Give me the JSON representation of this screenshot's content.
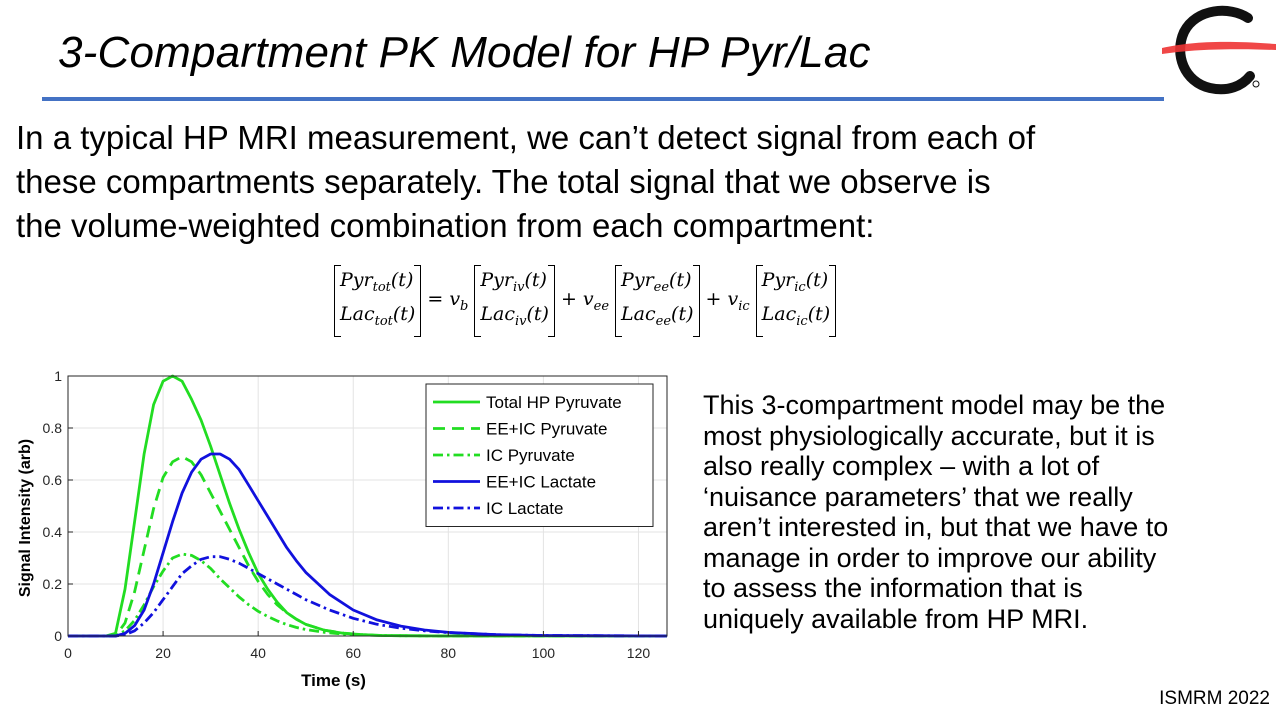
{
  "title": "3-Compartment PK Model for HP Pyr/Lac",
  "intro_lines": [
    "In a typical HP MRI measurement, we can’t detect signal from each of",
    "these compartments separately.  The total signal that we observe is",
    "the volume-weighted combination from each compartment:"
  ],
  "equation": {
    "lhs": [
      "Pyr",
      "tot",
      "Lac",
      "tot"
    ],
    "terms": [
      {
        "coef": "v",
        "coef_sub": "b",
        "sub": "iv"
      },
      {
        "coef": "v",
        "coef_sub": "ee",
        "sub": "ee"
      },
      {
        "coef": "v",
        "coef_sub": "ic",
        "sub": "ic"
      }
    ],
    "arg": "(t)",
    "equals": "=",
    "plus": "+"
  },
  "side_text_lines": [
    "This 3-compartment model may be the",
    "most physiologically accurate, but it is",
    "also really complex – with a lot of",
    "‘nuisance parameters’ that we really",
    "aren’t interested in, but that we have to",
    "manage in order to improve our ability",
    "to assess the information that is",
    "uniquely available from HP MRI."
  ],
  "footer": "ISMRM 2022",
  "logo_icon": "c-logo-icon",
  "chart_data": {
    "type": "line",
    "xlabel": "Time (s)",
    "ylabel": "Signal Intensity (arb)",
    "xlim": [
      0,
      126
    ],
    "ylim": [
      0,
      1
    ],
    "xticks": [
      0,
      20,
      40,
      60,
      80,
      100,
      120
    ],
    "yticks": [
      0,
      0.2,
      0.4,
      0.6,
      0.8,
      1
    ],
    "grid": true,
    "legend_position": "top-right",
    "series": [
      {
        "name": "Total HP Pyruvate",
        "color": "#22dd22",
        "dash": "solid",
        "x": [
          0,
          8,
          10,
          12,
          14,
          16,
          18,
          20,
          22,
          24,
          26,
          28,
          30,
          32,
          34,
          36,
          38,
          40,
          42,
          44,
          46,
          48,
          50,
          54,
          58,
          62,
          66,
          70,
          80,
          90,
          126
        ],
        "y": [
          0,
          0,
          0.01,
          0.18,
          0.44,
          0.7,
          0.89,
          0.98,
          1.0,
          0.98,
          0.91,
          0.83,
          0.73,
          0.62,
          0.51,
          0.41,
          0.32,
          0.24,
          0.18,
          0.13,
          0.09,
          0.065,
          0.045,
          0.022,
          0.01,
          0.005,
          0.002,
          0.001,
          0,
          0,
          0
        ]
      },
      {
        "name": "EE+IC Pyruvate",
        "color": "#22dd22",
        "dash": "dashed",
        "x": [
          0,
          10,
          12,
          14,
          16,
          18,
          20,
          22,
          24,
          26,
          28,
          30,
          32,
          34,
          36,
          38,
          40,
          42,
          44,
          46,
          48,
          50,
          54,
          58,
          62,
          66,
          70,
          80,
          126
        ],
        "y": [
          0,
          0,
          0.05,
          0.17,
          0.33,
          0.49,
          0.61,
          0.67,
          0.69,
          0.67,
          0.62,
          0.55,
          0.48,
          0.41,
          0.34,
          0.27,
          0.21,
          0.16,
          0.12,
          0.09,
          0.065,
          0.045,
          0.022,
          0.011,
          0.005,
          0.002,
          0.001,
          0,
          0
        ]
      },
      {
        "name": "IC Pyruvate",
        "color": "#22dd22",
        "dash": "dashdot",
        "x": [
          0,
          10,
          12,
          14,
          16,
          18,
          20,
          22,
          24,
          26,
          28,
          30,
          32,
          34,
          36,
          38,
          40,
          42,
          44,
          46,
          48,
          50,
          54,
          58,
          62,
          66,
          70,
          80,
          126
        ],
        "y": [
          0,
          0,
          0.02,
          0.06,
          0.12,
          0.19,
          0.25,
          0.3,
          0.315,
          0.31,
          0.29,
          0.26,
          0.22,
          0.185,
          0.15,
          0.12,
          0.095,
          0.075,
          0.058,
          0.044,
          0.033,
          0.025,
          0.014,
          0.007,
          0.004,
          0.002,
          0.001,
          0,
          0
        ]
      },
      {
        "name": "EE+IC Lactate",
        "color": "#1111dd",
        "dash": "solid",
        "x": [
          0,
          10,
          12,
          14,
          16,
          18,
          20,
          22,
          24,
          26,
          28,
          30,
          32,
          34,
          36,
          38,
          40,
          42,
          44,
          46,
          48,
          50,
          55,
          60,
          65,
          70,
          75,
          80,
          90,
          100,
          110,
          126
        ],
        "y": [
          0,
          0,
          0.01,
          0.04,
          0.1,
          0.2,
          0.32,
          0.44,
          0.55,
          0.63,
          0.68,
          0.7,
          0.7,
          0.68,
          0.64,
          0.58,
          0.52,
          0.46,
          0.4,
          0.34,
          0.29,
          0.245,
          0.16,
          0.1,
          0.062,
          0.038,
          0.023,
          0.014,
          0.005,
          0.002,
          0.001,
          0
        ]
      },
      {
        "name": "IC Lactate",
        "color": "#1111dd",
        "dash": "dashdot",
        "x": [
          0,
          10,
          12,
          14,
          16,
          18,
          20,
          22,
          24,
          26,
          28,
          30,
          32,
          34,
          36,
          38,
          40,
          42,
          44,
          46,
          48,
          50,
          55,
          60,
          65,
          70,
          75,
          80,
          90,
          100,
          110,
          126
        ],
        "y": [
          0,
          0,
          0.005,
          0.02,
          0.05,
          0.09,
          0.14,
          0.19,
          0.24,
          0.27,
          0.295,
          0.305,
          0.305,
          0.295,
          0.28,
          0.26,
          0.24,
          0.22,
          0.2,
          0.18,
          0.16,
          0.14,
          0.1,
          0.068,
          0.045,
          0.03,
          0.02,
          0.013,
          0.005,
          0.002,
          0.001,
          0
        ]
      }
    ]
  }
}
